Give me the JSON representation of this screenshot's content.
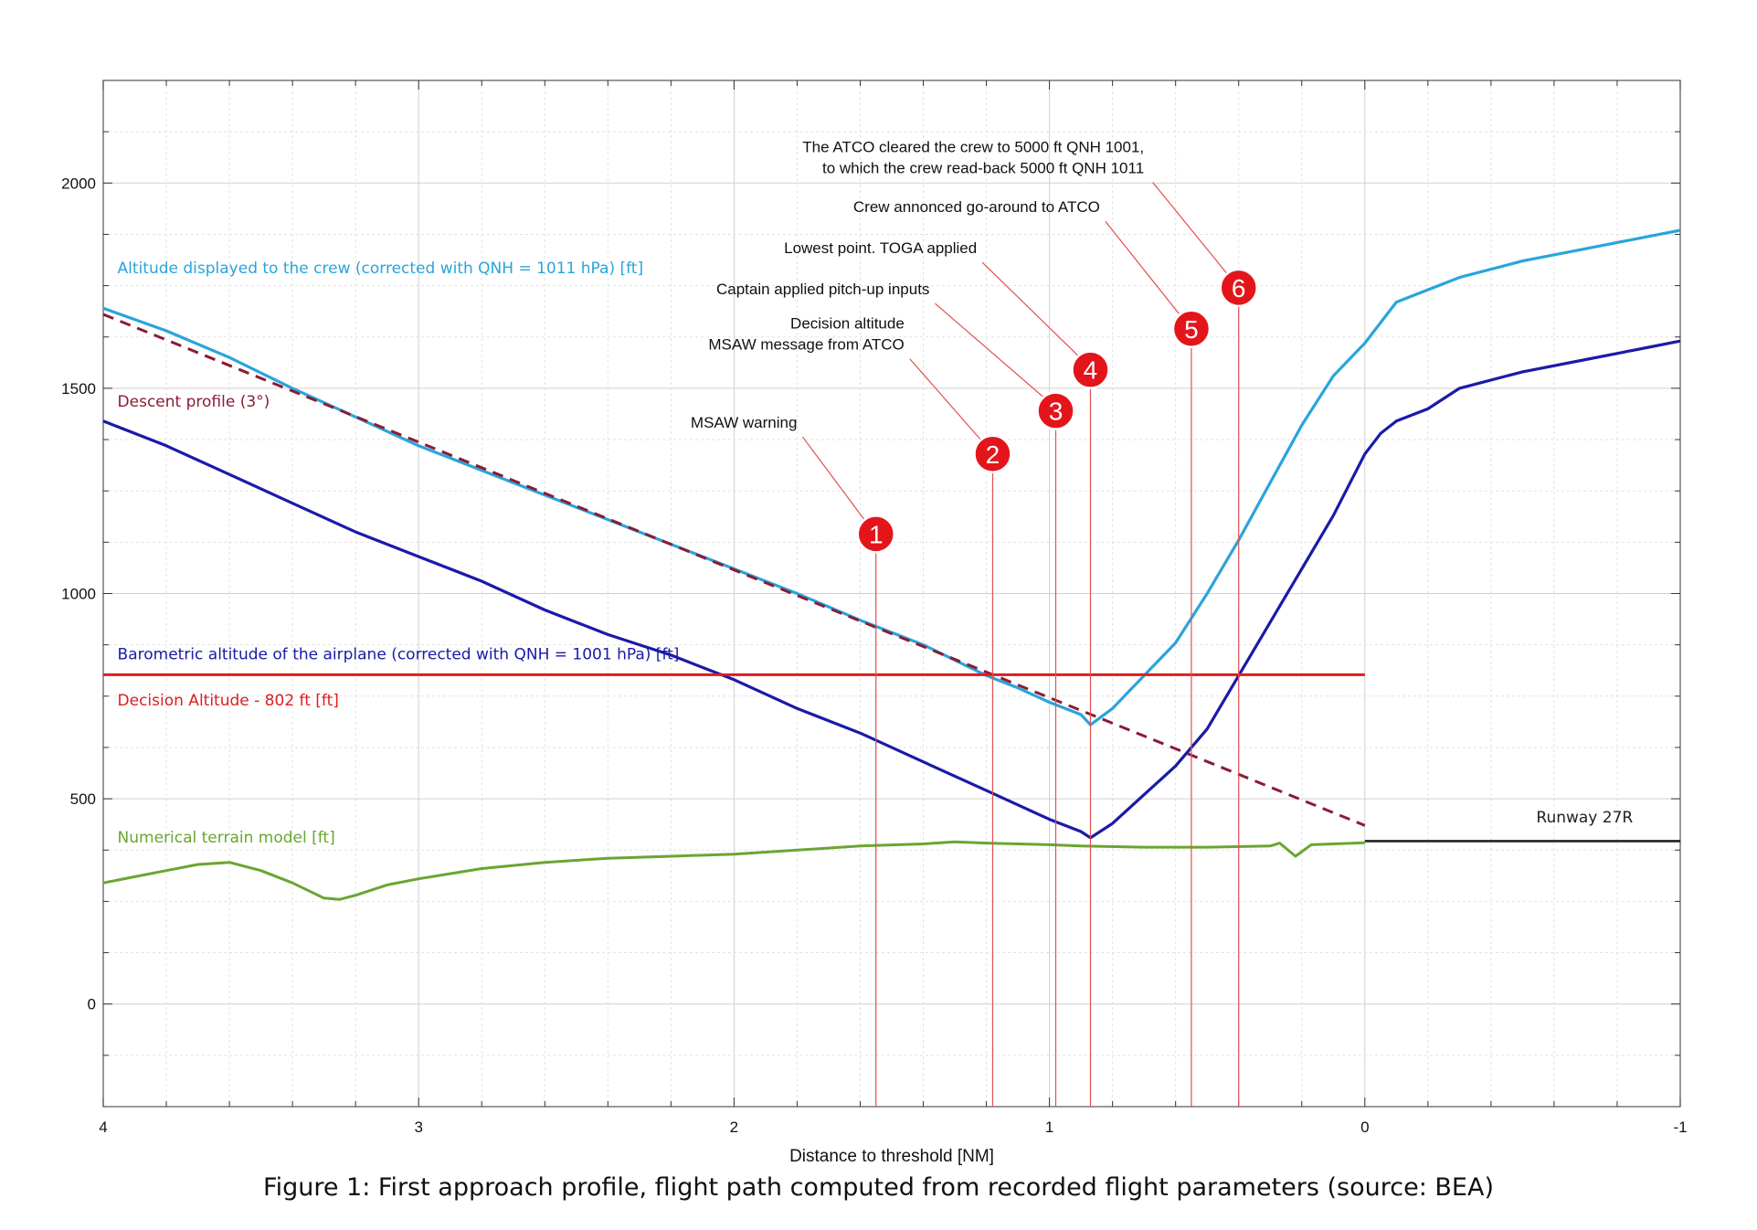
{
  "caption": "Figure 1: First approach profile, flight path computed from recorded flight parameters (source: BEA)",
  "chart_data": {
    "type": "line",
    "title": "",
    "xlabel": "Distance to threshold [NM]",
    "ylabel": "",
    "xlim": [
      4,
      -1
    ],
    "ylim": [
      -250,
      2250
    ],
    "x_ticks": [
      4,
      3,
      2,
      1,
      0,
      -1
    ],
    "y_ticks": [
      0,
      500,
      1000,
      1500,
      2000
    ],
    "grid": true,
    "series": [
      {
        "name": "Altitude displayed to the crew (corrected with QNH = 1011 hPa) [ft]",
        "color": "#2aa4dc",
        "x": [
          4.0,
          3.8,
          3.6,
          3.4,
          3.2,
          3.0,
          2.8,
          2.6,
          2.4,
          2.2,
          2.0,
          1.8,
          1.6,
          1.4,
          1.2,
          1.1,
          1.0,
          0.9,
          0.87,
          0.8,
          0.7,
          0.6,
          0.5,
          0.4,
          0.3,
          0.2,
          0.1,
          0.0,
          -0.05,
          -0.1,
          -0.2,
          -0.3,
          -0.5,
          -0.7,
          -0.9,
          -1.0
        ],
        "y": [
          1695,
          1640,
          1575,
          1500,
          1430,
          1360,
          1300,
          1240,
          1180,
          1120,
          1060,
          1000,
          935,
          875,
          800,
          770,
          735,
          705,
          680,
          720,
          800,
          880,
          1000,
          1130,
          1270,
          1410,
          1530,
          1610,
          1660,
          1710,
          1740,
          1770,
          1810,
          1840,
          1870,
          1885
        ]
      },
      {
        "name": "Descent profile (3°)",
        "color": "#8a1c33",
        "dashed": true,
        "x": [
          4.0,
          0.0
        ],
        "y": [
          1680,
          435
        ]
      },
      {
        "name": "Barometric altitude of the airplane (corrected with QNH = 1001 hPa) [ft]",
        "color": "#1a1aa8",
        "x": [
          4.0,
          3.8,
          3.6,
          3.4,
          3.2,
          3.0,
          2.8,
          2.6,
          2.4,
          2.2,
          2.0,
          1.8,
          1.6,
          1.4,
          1.2,
          1.0,
          0.9,
          0.87,
          0.8,
          0.7,
          0.6,
          0.5,
          0.4,
          0.3,
          0.2,
          0.1,
          0.0,
          -0.05,
          -0.1,
          -0.2,
          -0.3,
          -0.5,
          -0.7,
          -0.9,
          -1.0
        ],
        "y": [
          1420,
          1360,
          1290,
          1220,
          1150,
          1090,
          1030,
          960,
          900,
          850,
          790,
          720,
          660,
          590,
          520,
          450,
          420,
          405,
          440,
          510,
          580,
          670,
          800,
          930,
          1060,
          1190,
          1340,
          1390,
          1420,
          1450,
          1500,
          1540,
          1570,
          1600,
          1615
        ]
      },
      {
        "name": "Decision Altitude - 802 ft [ft]",
        "color": "#dc1e1e",
        "x": [
          4.0,
          0.0
        ],
        "y": [
          802,
          802
        ]
      },
      {
        "name": "Numerical terrain model [ft]",
        "color": "#6aa531",
        "x": [
          4.0,
          3.9,
          3.8,
          3.7,
          3.6,
          3.5,
          3.4,
          3.3,
          3.25,
          3.2,
          3.1,
          3.0,
          2.8,
          2.6,
          2.4,
          2.2,
          2.0,
          1.8,
          1.6,
          1.4,
          1.3,
          1.2,
          1.0,
          0.9,
          0.7,
          0.5,
          0.3,
          0.27,
          0.22,
          0.17,
          0.1,
          0.0
        ],
        "y": [
          295,
          310,
          325,
          340,
          345,
          325,
          295,
          258,
          255,
          265,
          290,
          305,
          330,
          345,
          355,
          360,
          365,
          375,
          385,
          390,
          395,
          392,
          388,
          385,
          382,
          382,
          385,
          392,
          360,
          388,
          390,
          393
        ]
      },
      {
        "name": "Runway 27R",
        "color": "#222222",
        "x": [
          0.0,
          -1.0
        ],
        "y": [
          397,
          397
        ]
      }
    ],
    "events": [
      {
        "id": "1",
        "x": 1.55,
        "y": 1145,
        "label": "MSAW warning"
      },
      {
        "id": "2",
        "x": 1.18,
        "y": 1340,
        "label_lines": [
          "Decision altitude",
          "MSAW message from ATCO"
        ]
      },
      {
        "id": "3",
        "x": 0.98,
        "y": 1445,
        "label": "Captain applied pitch-up inputs"
      },
      {
        "id": "4",
        "x": 0.87,
        "y": 1545,
        "label": "Lowest point. TOGA applied"
      },
      {
        "id": "5",
        "x": 0.55,
        "y": 1645,
        "label": "Crew annonced go-around to ATCO"
      },
      {
        "id": "6",
        "x": 0.4,
        "y": 1745,
        "label_lines": [
          "The ATCO cleared the crew to 5000 ft QNH 1001,",
          "to which the crew read-back 5000 ft QNH 1011"
        ]
      }
    ]
  }
}
